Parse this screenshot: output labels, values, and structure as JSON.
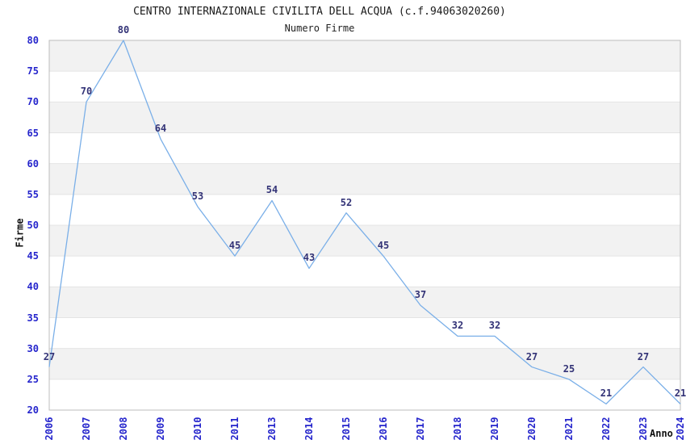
{
  "chart_data": {
    "type": "line",
    "title": "CENTRO INTERNAZIONALE CIVILITA DELL ACQUA (c.f.94063020260)",
    "subtitle": "Numero Firme",
    "xlabel": "Anno",
    "ylabel": "Firme",
    "categories": [
      "2006",
      "2007",
      "2008",
      "2009",
      "2010",
      "2011",
      "2013",
      "2014",
      "2015",
      "2016",
      "2017",
      "2018",
      "2019",
      "2020",
      "2021",
      "2022",
      "2023",
      "2024"
    ],
    "series": [
      {
        "name": "Numero Firme",
        "values": [
          27,
          70,
          80,
          64,
          53,
          45,
          54,
          43,
          52,
          45,
          37,
          32,
          32,
          27,
          25,
          21,
          27,
          21
        ]
      }
    ],
    "data_labels_shown": true,
    "ylim": [
      20,
      80
    ],
    "y_ticks": [
      20,
      25,
      30,
      35,
      40,
      45,
      50,
      55,
      60,
      65,
      70,
      75,
      80
    ],
    "legend": "none",
    "grid": {
      "horizontal_gridlines_every": 5,
      "alternating_shaded_bands": true,
      "shaded_bands": [
        [
          25,
          30
        ],
        [
          35,
          40
        ],
        [
          45,
          50
        ],
        [
          55,
          60
        ],
        [
          65,
          70
        ],
        [
          75,
          80
        ]
      ]
    },
    "colors": {
      "line": "#7aafe8",
      "tick_label": "#2525cc",
      "data_label": "#333377",
      "title": "#1a1a1a",
      "band": "#f2f2f2",
      "gridline": "#e4e4e4",
      "frame": "#bcbcbc",
      "background": "#ffffff"
    }
  }
}
